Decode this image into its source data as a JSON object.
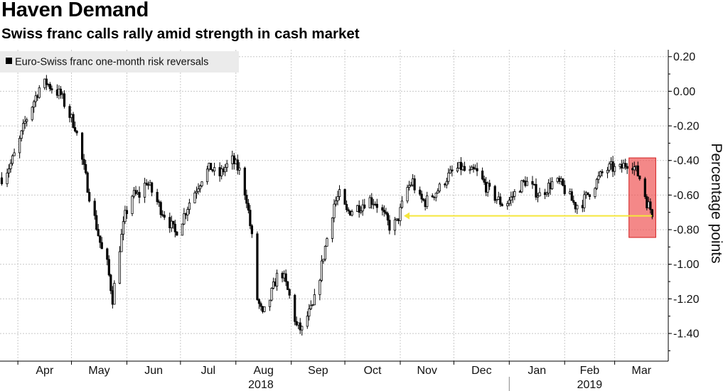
{
  "header": {
    "title": "Haven Demand",
    "subtitle": "Swiss franc calls rally amid strength in cash market"
  },
  "chart_data": {
    "type": "candlestick",
    "legend": {
      "label": "Euro-Swiss franc one-month risk reversals",
      "position": "top-left"
    },
    "ylabel": "Percentage points",
    "ylim": [
      -1.56,
      0.24
    ],
    "yticks": [
      0.2,
      0.0,
      -0.2,
      -0.4,
      -0.6,
      -0.8,
      -1.0,
      -1.2,
      -1.4
    ],
    "ytick_labels": [
      "0.20",
      "0.00",
      "-0.20",
      "-0.40",
      "-0.60",
      "-0.80",
      "-1.00",
      "-1.20",
      "-1.40"
    ],
    "xlim": [
      "2018-03-22",
      "2019-03-31"
    ],
    "x_month_labels": [
      "Apr",
      "May",
      "Jun",
      "Jul",
      "Aug",
      "Sep",
      "Oct",
      "Nov",
      "Dec",
      "Jan",
      "Feb",
      "Mar"
    ],
    "x_year_labels": [
      {
        "year": "2018",
        "at": "2018-08-15"
      },
      {
        "year": "2019",
        "at": "2019-02-15"
      }
    ],
    "grid": true,
    "series": [
      {
        "path": [
          [
            "2018-03-23",
            -0.5
          ],
          [
            "2018-03-28",
            -0.42
          ],
          [
            "2018-04-01",
            -0.32
          ],
          [
            "2018-04-05",
            -0.18
          ],
          [
            "2018-04-09",
            -0.08
          ],
          [
            "2018-04-13",
            0.02
          ],
          [
            "2018-04-17",
            0.05
          ],
          [
            "2018-04-21",
            0.01
          ],
          [
            "2018-04-25",
            -0.02
          ],
          [
            "2018-04-29",
            -0.12
          ],
          [
            "2018-05-03",
            -0.2
          ],
          [
            "2018-05-07",
            -0.4
          ],
          [
            "2018-05-11",
            -0.6
          ],
          [
            "2018-05-15",
            -0.78
          ],
          [
            "2018-05-18",
            -0.92
          ],
          [
            "2018-05-21",
            -1.0
          ],
          [
            "2018-05-24",
            -1.2
          ],
          [
            "2018-05-28",
            -0.9
          ],
          [
            "2018-05-31",
            -0.72
          ],
          [
            "2018-06-04",
            -0.6
          ],
          [
            "2018-06-08",
            -0.6
          ],
          [
            "2018-06-12",
            -0.52
          ],
          [
            "2018-06-16",
            -0.6
          ],
          [
            "2018-06-20",
            -0.68
          ],
          [
            "2018-06-24",
            -0.74
          ],
          [
            "2018-06-28",
            -0.82
          ],
          [
            "2018-07-02",
            -0.74
          ],
          [
            "2018-07-06",
            -0.64
          ],
          [
            "2018-07-10",
            -0.56
          ],
          [
            "2018-07-14",
            -0.48
          ],
          [
            "2018-07-18",
            -0.44
          ],
          [
            "2018-07-22",
            -0.5
          ],
          [
            "2018-07-26",
            -0.44
          ],
          [
            "2018-07-30",
            -0.4
          ],
          [
            "2018-08-03",
            -0.46
          ],
          [
            "2018-08-07",
            -0.62
          ],
          [
            "2018-08-10",
            -0.85
          ],
          [
            "2018-08-13",
            -1.2
          ],
          [
            "2018-08-16",
            -1.3
          ],
          [
            "2018-08-20",
            -1.2
          ],
          [
            "2018-08-23",
            -1.1
          ],
          [
            "2018-08-26",
            -1.02
          ],
          [
            "2018-08-29",
            -1.12
          ],
          [
            "2018-09-01",
            -1.22
          ],
          [
            "2018-09-04",
            -1.36
          ],
          [
            "2018-09-07",
            -1.38
          ],
          [
            "2018-09-10",
            -1.3
          ],
          [
            "2018-09-13",
            -1.25
          ],
          [
            "2018-09-16",
            -1.12
          ],
          [
            "2018-09-19",
            -0.95
          ],
          [
            "2018-09-22",
            -0.8
          ],
          [
            "2018-09-25",
            -0.65
          ],
          [
            "2018-09-28",
            -0.6
          ],
          [
            "2018-10-02",
            -0.7
          ],
          [
            "2018-10-06",
            -0.68
          ],
          [
            "2018-10-10",
            -0.66
          ],
          [
            "2018-10-14",
            -0.62
          ],
          [
            "2018-10-18",
            -0.64
          ],
          [
            "2018-10-22",
            -0.7
          ],
          [
            "2018-10-26",
            -0.78
          ],
          [
            "2018-10-30",
            -0.76
          ],
          [
            "2018-11-02",
            -0.66
          ],
          [
            "2018-11-05",
            -0.56
          ],
          [
            "2018-11-08",
            -0.52
          ],
          [
            "2018-11-11",
            -0.62
          ],
          [
            "2018-11-15",
            -0.64
          ],
          [
            "2018-11-19",
            -0.6
          ],
          [
            "2018-11-23",
            -0.56
          ],
          [
            "2018-11-27",
            -0.5
          ],
          [
            "2018-12-01",
            -0.46
          ],
          [
            "2018-12-05",
            -0.44
          ],
          [
            "2018-12-09",
            -0.48
          ],
          [
            "2018-12-13",
            -0.46
          ],
          [
            "2018-12-17",
            -0.52
          ],
          [
            "2018-12-21",
            -0.58
          ],
          [
            "2018-12-25",
            -0.62
          ],
          [
            "2018-12-29",
            -0.66
          ],
          [
            "2019-01-02",
            -0.62
          ],
          [
            "2019-01-06",
            -0.56
          ],
          [
            "2019-01-10",
            -0.52
          ],
          [
            "2019-01-14",
            -0.56
          ],
          [
            "2019-01-18",
            -0.6
          ],
          [
            "2019-01-22",
            -0.56
          ],
          [
            "2019-01-26",
            -0.52
          ],
          [
            "2019-01-30",
            -0.54
          ],
          [
            "2019-02-03",
            -0.6
          ],
          [
            "2019-02-07",
            -0.66
          ],
          [
            "2019-02-11",
            -0.64
          ],
          [
            "2019-02-15",
            -0.58
          ],
          [
            "2019-02-19",
            -0.52
          ],
          [
            "2019-02-23",
            -0.46
          ],
          [
            "2019-02-27",
            -0.44
          ],
          [
            "2019-03-03",
            -0.46
          ],
          [
            "2019-03-07",
            -0.42
          ],
          [
            "2019-03-10",
            -0.4
          ],
          [
            "2019-03-13",
            -0.46
          ],
          [
            "2019-03-16",
            -0.52
          ],
          [
            "2019-03-19",
            -0.64
          ],
          [
            "2019-03-22",
            -0.7
          ]
        ]
      }
    ],
    "annotations": [
      {
        "type": "arrow",
        "color": "#f5e63c",
        "from": [
          "2019-03-22",
          -0.72
        ],
        "to": [
          "2018-11-03",
          -0.72
        ]
      },
      {
        "type": "highlight-box",
        "color": "#f05a5a",
        "x": [
          "2019-03-09",
          "2019-03-24"
        ],
        "y": [
          -0.845,
          -0.385
        ]
      }
    ],
    "colors": {
      "series": "#000000",
      "grid": "#c8c8c8",
      "legend_bg": "#ebebeb"
    }
  }
}
